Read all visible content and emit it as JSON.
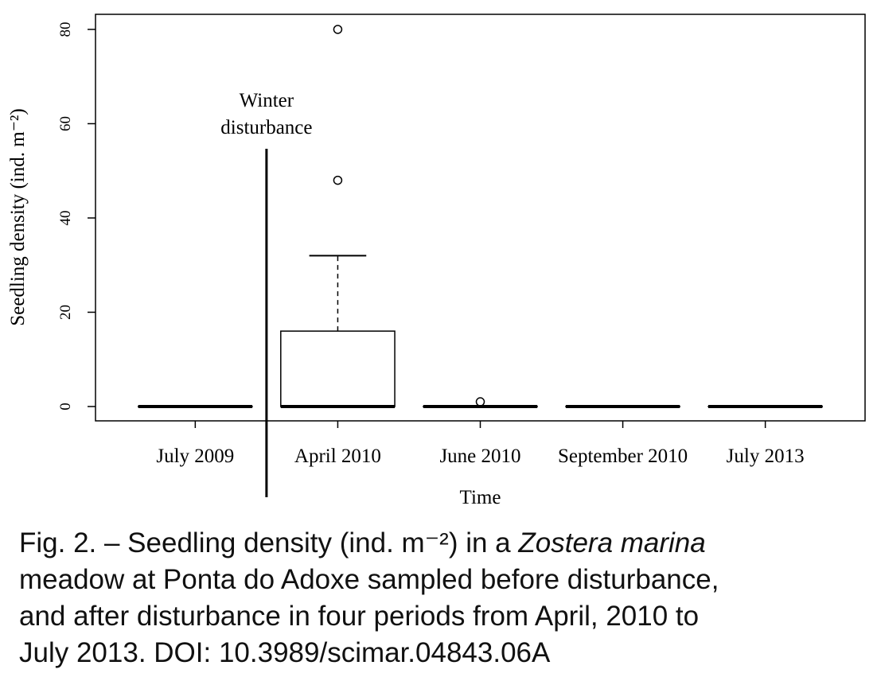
{
  "chart_data": {
    "type": "box",
    "ylabel": "Seedling density (ind. m⁻²)",
    "xlabel": "Time",
    "categories": [
      "July 2009",
      "April 2010",
      "June 2010",
      "September 2010",
      "July 2013"
    ],
    "boxes": [
      {
        "min": 0,
        "q1": 0,
        "median": 0,
        "q3": 0,
        "max": 0,
        "outliers": []
      },
      {
        "min": 0,
        "q1": 0,
        "median": 0,
        "q3": 16,
        "max": 32,
        "outliers": [
          48,
          80
        ]
      },
      {
        "min": 0,
        "q1": 0,
        "median": 0,
        "q3": 0,
        "max": 0,
        "outliers": [
          1
        ]
      },
      {
        "min": 0,
        "q1": 0,
        "median": 0,
        "q3": 0,
        "max": 0,
        "outliers": []
      },
      {
        "min": 0,
        "q1": 0,
        "median": 0,
        "q3": 0,
        "max": 0,
        "outliers": []
      }
    ],
    "ylim": [
      -3.04,
      83.2
    ],
    "yticks": [
      0,
      20,
      40,
      60,
      80
    ],
    "annotation": [
      "Winter",
      "disturbance"
    ]
  },
  "caption": [
    [
      "Fig. 2. – Seedling density (ind. m⁻²) in a ",
      "Zostera marina"
    ],
    [
      "meadow at Ponta do Adoxe sampled before disturbance,"
    ],
    [
      "and after disturbance in four periods from April, 2010 to"
    ],
    [
      "July 2013. DOI: 10.3989/scimar.04843.06A"
    ]
  ]
}
